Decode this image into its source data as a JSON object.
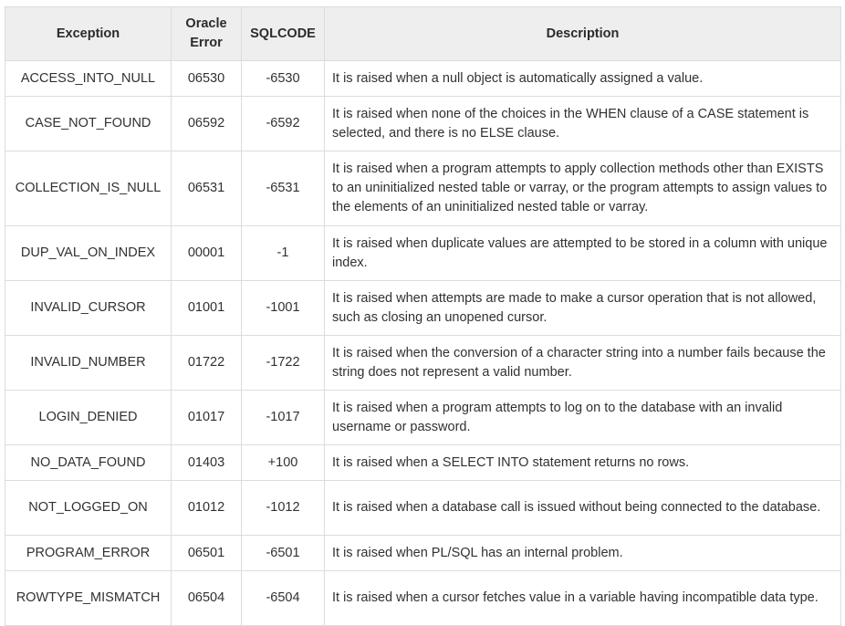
{
  "table": {
    "headers": {
      "exception": "Exception",
      "oracle_error": "Oracle Error",
      "sqlcode": "SQLCODE",
      "description": "Description"
    },
    "rows": [
      {
        "exception": "ACCESS_INTO_NULL",
        "oracle_error": "06530",
        "sqlcode": "-6530",
        "description": "It is raised when a null object is automatically assigned a value."
      },
      {
        "exception": "CASE_NOT_FOUND",
        "oracle_error": "06592",
        "sqlcode": "-6592",
        "description": "It is raised when none of the choices in the WHEN clause of a CASE statement is selected, and there is no ELSE clause."
      },
      {
        "exception": "COLLECTION_IS_NULL",
        "oracle_error": "06531",
        "sqlcode": "-6531",
        "description": "It is raised when a program attempts to apply collection methods other than EXISTS to an uninitialized nested table or varray, or the program attempts to assign values to the elements of an uninitialized nested table or varray."
      },
      {
        "exception": "DUP_VAL_ON_INDEX",
        "oracle_error": "00001",
        "sqlcode": "-1",
        "description": "It is raised when duplicate values are attempted to be stored in a column with unique index."
      },
      {
        "exception": "INVALID_CURSOR",
        "oracle_error": "01001",
        "sqlcode": "-1001",
        "description": "It is raised when attempts are made to make a cursor operation that is not allowed, such as closing an unopened cursor."
      },
      {
        "exception": "INVALID_NUMBER",
        "oracle_error": "01722",
        "sqlcode": "-1722",
        "description": "It is raised when the conversion of a character string into a number fails because the string does not represent a valid number."
      },
      {
        "exception": "LOGIN_DENIED",
        "oracle_error": "01017",
        "sqlcode": "-1017",
        "description": "It is raised when a program attempts to log on to the database with an invalid username or password."
      },
      {
        "exception": "NO_DATA_FOUND",
        "oracle_error": "01403",
        "sqlcode": "+100",
        "description": "It is raised when a SELECT INTO statement returns no rows."
      },
      {
        "exception": "NOT_LOGGED_ON",
        "oracle_error": "01012",
        "sqlcode": "-1012",
        "description": "It is raised when a database call is issued without being connected to the database."
      },
      {
        "exception": "PROGRAM_ERROR",
        "oracle_error": "06501",
        "sqlcode": "-6501",
        "description": "It is raised when PL/SQL has an internal problem."
      },
      {
        "exception": "ROWTYPE_MISMATCH",
        "oracle_error": "06504",
        "sqlcode": "-6504",
        "description": "It is raised when a cursor fetches value in a variable having incompatible data type."
      }
    ]
  }
}
